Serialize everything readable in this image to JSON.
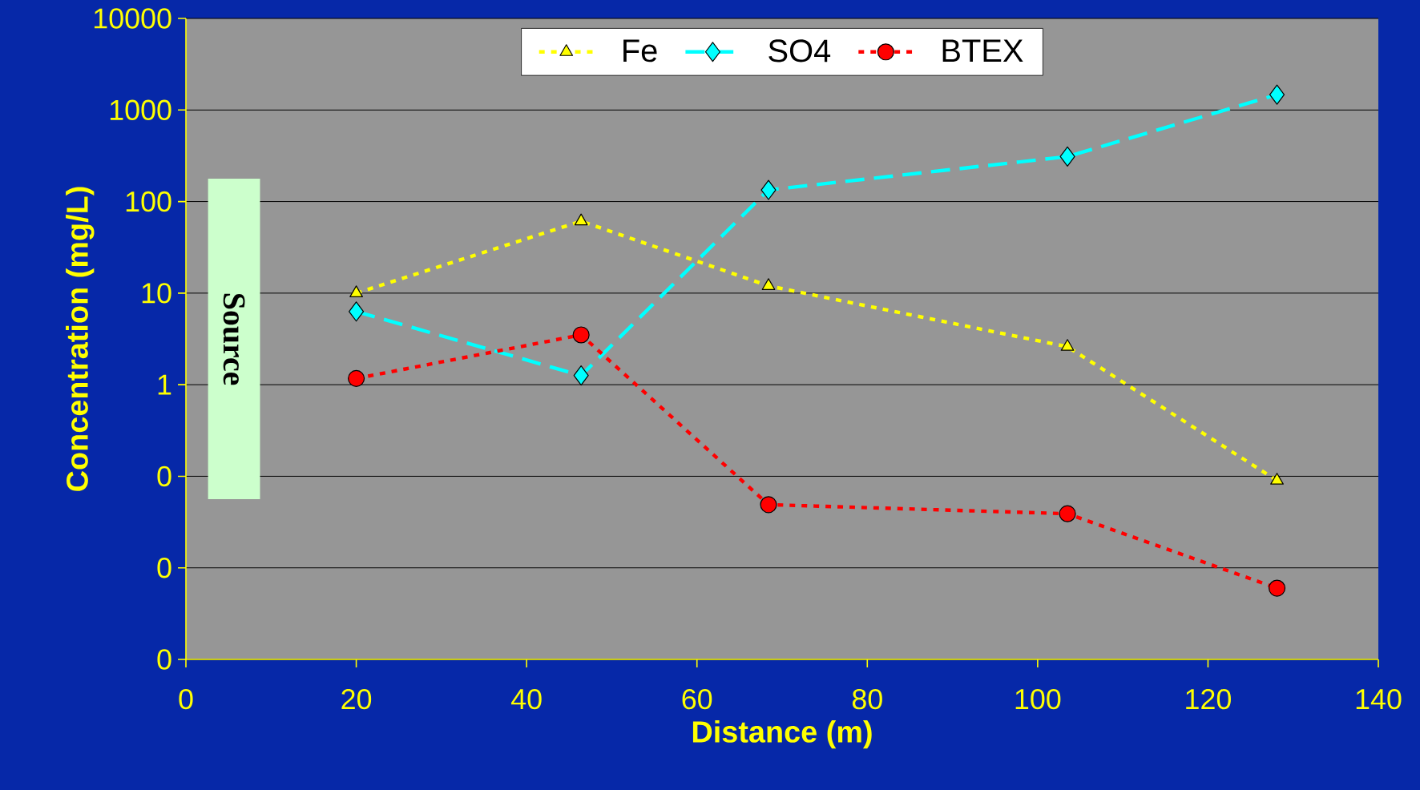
{
  "chart_data": {
    "type": "line",
    "xlabel": "Distance (m)",
    "ylabel": "Concentration (mg/L)",
    "log": "y",
    "x": [
      20,
      46.4,
      68.4,
      103.5,
      128.1
    ],
    "xlim": [
      0,
      140
    ],
    "xticks": [
      0,
      20,
      40,
      60,
      80,
      100,
      120,
      140
    ],
    "ylim": [
      0.001,
      10000
    ],
    "yticks": [
      {
        "value": 0.001,
        "label": "0"
      },
      {
        "value": 0.01,
        "label": "0"
      },
      {
        "value": 0.1,
        "label": "0"
      },
      1,
      10,
      100,
      1000,
      10000
    ],
    "grid": "y",
    "legend": "top",
    "series": [
      {
        "name": "Fe",
        "color": "#ffff00",
        "marker": "triangle",
        "line_style": "dotted",
        "values": [
          10,
          61,
          12,
          2.6,
          0.09
        ]
      },
      {
        "name": "SO4",
        "color": "#00ffff",
        "marker": "diamond",
        "line_style": "dashed",
        "values": [
          6.3,
          1.26,
          134,
          310,
          1470
        ]
      },
      {
        "name": "BTEX",
        "color": "#ff0000",
        "marker": "circle",
        "line_style": "dotted",
        "values": [
          1.17,
          3.5,
          0.049,
          0.039,
          0.006
        ]
      }
    ],
    "bands": [
      {
        "axis": "x",
        "from": 2.6,
        "to": 8.7,
        "label": "Source",
        "color": "#ccffcc"
      }
    ]
  }
}
